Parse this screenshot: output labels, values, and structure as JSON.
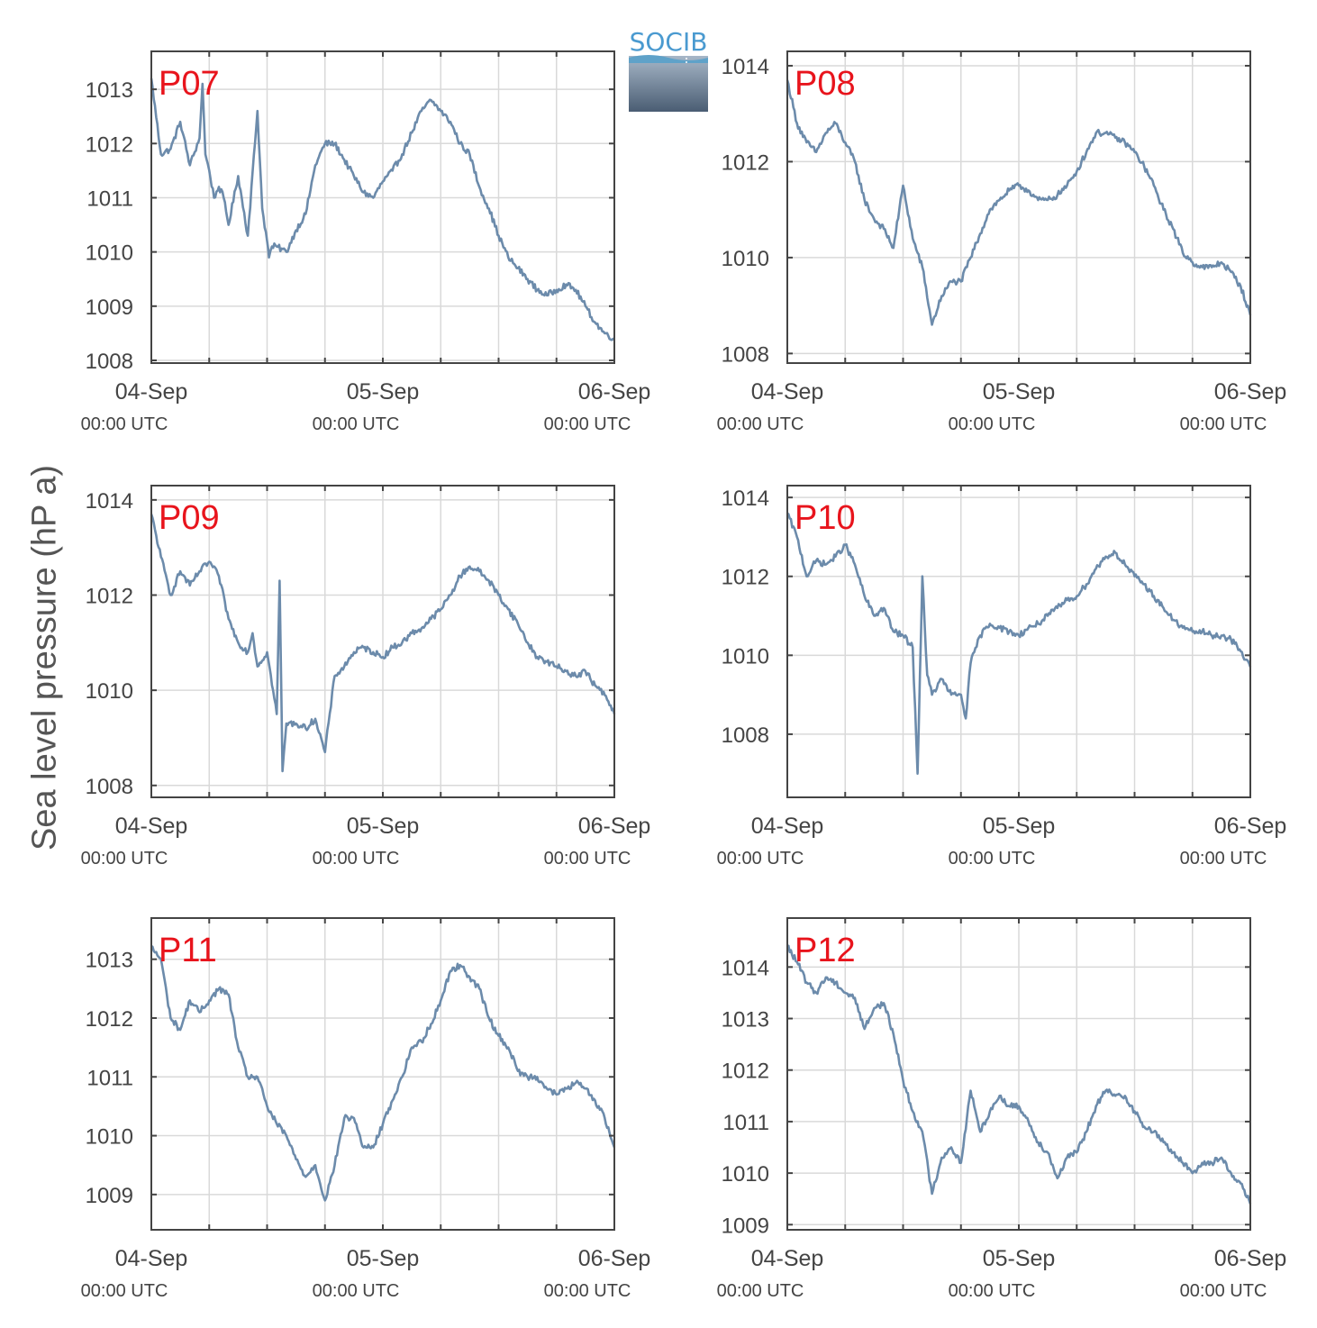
{
  "y_axis_label": "Sea level pressure (hP a)",
  "logo": {
    "text": "SOCIB",
    "color": "#4a9ad0"
  },
  "colors": {
    "series": "#6c8bab",
    "station_label": "#e8141c",
    "grid": "#d9d9d9",
    "axes": "#444444"
  },
  "chart_data": [
    {
      "type": "line",
      "panel_label": "P07",
      "x_ticks": [
        {
          "line1": "04-Sep",
          "line2": "00:00 UTC"
        },
        {
          "line1": "05-Sep",
          "line2": "00:00 UTC"
        },
        {
          "line1": "06-Sep",
          "line2": "00:00 UTC"
        }
      ],
      "x_range_hours": [
        0,
        48
      ],
      "ylim": [
        1007.95,
        1013.7
      ],
      "y_ticks": [
        1008,
        1009,
        1010,
        1011,
        1012,
        1013
      ],
      "grid": true,
      "x_hours": [
        0,
        1,
        2,
        3,
        4,
        5,
        5.3,
        5.6,
        6,
        6.5,
        7,
        7.5,
        8,
        9,
        10,
        11,
        11.5,
        12,
        12.2,
        12.5,
        13,
        14,
        15,
        16,
        17,
        18,
        19,
        20,
        21,
        22,
        23,
        24,
        25,
        26,
        27,
        28,
        29,
        30,
        31,
        32,
        33,
        34,
        35,
        36,
        37,
        38,
        39,
        40,
        41,
        42,
        43,
        44,
        45,
        46,
        47,
        48
      ],
      "values": [
        1013.2,
        1011.8,
        1011.9,
        1012.4,
        1011.6,
        1012.1,
        1013.1,
        1011.8,
        1011.5,
        1011.0,
        1011.2,
        1011.0,
        1010.5,
        1011.4,
        1010.3,
        1012.6,
        1010.8,
        1010.2,
        1009.9,
        1010.1,
        1010.1,
        1010.0,
        1010.4,
        1010.7,
        1011.6,
        1012.0,
        1012.0,
        1011.7,
        1011.4,
        1011.1,
        1011.0,
        1011.3,
        1011.5,
        1011.8,
        1012.2,
        1012.6,
        1012.8,
        1012.6,
        1012.4,
        1012.0,
        1011.8,
        1011.2,
        1010.8,
        1010.3,
        1009.9,
        1009.7,
        1009.5,
        1009.3,
        1009.2,
        1009.3,
        1009.4,
        1009.3,
        1009.0,
        1008.7,
        1008.5,
        1008.4
      ]
    },
    {
      "type": "line",
      "panel_label": "P08",
      "x_ticks": [
        {
          "line1": "04-Sep",
          "line2": "00:00 UTC"
        },
        {
          "line1": "05-Sep",
          "line2": "00:00 UTC"
        },
        {
          "line1": "06-Sep",
          "line2": "00:00 UTC"
        }
      ],
      "x_range_hours": [
        0,
        48
      ],
      "ylim": [
        1007.8,
        1014.3
      ],
      "y_ticks": [
        1008,
        1010,
        1012,
        1014
      ],
      "grid": true,
      "x_hours": [
        0,
        1,
        2,
        3,
        4,
        5,
        6,
        7,
        8,
        9,
        10,
        11,
        12,
        13,
        14,
        15,
        16,
        17,
        18,
        19,
        20,
        21,
        22,
        23,
        24,
        25,
        26,
        27,
        28,
        29,
        30,
        31,
        32,
        33,
        34,
        35,
        36,
        37,
        38,
        39,
        40,
        41,
        42,
        43,
        44,
        45,
        46,
        47,
        48
      ],
      "values": [
        1013.7,
        1012.8,
        1012.4,
        1012.2,
        1012.6,
        1012.8,
        1012.4,
        1012.0,
        1011.2,
        1010.8,
        1010.6,
        1010.2,
        1011.5,
        1010.4,
        1009.8,
        1008.6,
        1009.2,
        1009.5,
        1009.5,
        1010.0,
        1010.5,
        1011.0,
        1011.2,
        1011.4,
        1011.5,
        1011.4,
        1011.2,
        1011.2,
        1011.3,
        1011.5,
        1011.8,
        1012.2,
        1012.6,
        1012.6,
        1012.5,
        1012.4,
        1012.2,
        1011.9,
        1011.5,
        1011.0,
        1010.6,
        1010.1,
        1009.9,
        1009.8,
        1009.8,
        1009.9,
        1009.7,
        1009.4,
        1008.8
      ]
    },
    {
      "type": "line",
      "panel_label": "P09",
      "x_ticks": [
        {
          "line1": "04-Sep",
          "line2": "00:00 UTC"
        },
        {
          "line1": "05-Sep",
          "line2": "00:00 UTC"
        },
        {
          "line1": "06-Sep",
          "line2": "00:00 UTC"
        }
      ],
      "x_range_hours": [
        0,
        48
      ],
      "ylim": [
        1007.75,
        1014.3
      ],
      "y_ticks": [
        1008,
        1010,
        1012,
        1014
      ],
      "grid": true,
      "x_hours": [
        0,
        1,
        2,
        3,
        4,
        5,
        6,
        7,
        8,
        9,
        10,
        10.5,
        11,
        12,
        13,
        13.3,
        13.6,
        14,
        15,
        16,
        17,
        18,
        19,
        20,
        21,
        22,
        23,
        24,
        25,
        26,
        27,
        28,
        29,
        30,
        31,
        32,
        33,
        34,
        35,
        36,
        37,
        38,
        39,
        40,
        41,
        42,
        43,
        44,
        45,
        46,
        47,
        48
      ],
      "values": [
        1013.7,
        1012.8,
        1012.0,
        1012.5,
        1012.2,
        1012.5,
        1012.7,
        1012.4,
        1011.5,
        1011.0,
        1010.8,
        1011.2,
        1010.5,
        1010.8,
        1009.5,
        1012.3,
        1008.3,
        1009.3,
        1009.3,
        1009.2,
        1009.4,
        1008.7,
        1010.3,
        1010.5,
        1010.8,
        1010.9,
        1010.8,
        1010.7,
        1010.9,
        1011.0,
        1011.2,
        1011.3,
        1011.5,
        1011.7,
        1012.0,
        1012.4,
        1012.6,
        1012.5,
        1012.3,
        1012.0,
        1011.7,
        1011.4,
        1011.0,
        1010.7,
        1010.6,
        1010.5,
        1010.4,
        1010.3,
        1010.4,
        1010.1,
        1009.9,
        1009.5
      ]
    },
    {
      "type": "line",
      "panel_label": "P10",
      "x_ticks": [
        {
          "line1": "04-Sep",
          "line2": "00:00 UTC"
        },
        {
          "line1": "05-Sep",
          "line2": "00:00 UTC"
        },
        {
          "line1": "06-Sep",
          "line2": "00:00 UTC"
        }
      ],
      "x_range_hours": [
        0,
        48
      ],
      "ylim": [
        1006.4,
        1014.3
      ],
      "y_ticks": [
        1008,
        1010,
        1012,
        1014
      ],
      "grid": true,
      "x_hours": [
        0,
        1,
        2,
        3,
        4,
        5,
        6,
        7,
        8,
        9,
        10,
        11,
        12,
        13,
        13.5,
        14,
        14.5,
        15,
        16,
        17,
        18,
        18.5,
        19,
        20,
        21,
        22,
        23,
        24,
        25,
        26,
        27,
        28,
        29,
        30,
        31,
        32,
        33,
        34,
        35,
        36,
        37,
        38,
        39,
        40,
        41,
        42,
        43,
        44,
        45,
        46,
        47,
        48
      ],
      "values": [
        1013.6,
        1013.0,
        1012.0,
        1012.4,
        1012.3,
        1012.5,
        1012.8,
        1012.3,
        1011.5,
        1011.0,
        1011.2,
        1010.6,
        1010.5,
        1010.2,
        1007.0,
        1012.0,
        1009.5,
        1009.0,
        1009.4,
        1009.0,
        1009.0,
        1008.4,
        1009.8,
        1010.5,
        1010.8,
        1010.7,
        1010.6,
        1010.5,
        1010.7,
        1010.8,
        1011.0,
        1011.2,
        1011.4,
        1011.5,
        1011.8,
        1012.2,
        1012.5,
        1012.6,
        1012.3,
        1012.0,
        1011.8,
        1011.5,
        1011.2,
        1010.9,
        1010.7,
        1010.6,
        1010.6,
        1010.5,
        1010.5,
        1010.4,
        1010.1,
        1009.7
      ]
    },
    {
      "type": "line",
      "panel_label": "P11",
      "x_ticks": [
        {
          "line1": "04-Sep",
          "line2": "00:00 UTC"
        },
        {
          "line1": "05-Sep",
          "line2": "00:00 UTC"
        },
        {
          "line1": "06-Sep",
          "line2": "00:00 UTC"
        }
      ],
      "x_range_hours": [
        0,
        48
      ],
      "ylim": [
        1008.4,
        1013.7
      ],
      "y_ticks": [
        1009,
        1010,
        1011,
        1012,
        1013
      ],
      "grid": true,
      "x_hours": [
        0,
        1,
        2,
        3,
        4,
        5,
        6,
        7,
        8,
        9,
        10,
        11,
        12,
        13,
        14,
        15,
        16,
        17,
        18,
        19,
        20,
        21,
        22,
        23,
        24,
        25,
        26,
        27,
        28,
        29,
        30,
        31,
        32,
        33,
        34,
        35,
        36,
        37,
        38,
        39,
        40,
        41,
        42,
        43,
        44,
        45,
        46,
        47,
        48
      ],
      "values": [
        1013.2,
        1013.0,
        1012.0,
        1011.8,
        1012.3,
        1012.1,
        1012.3,
        1012.5,
        1012.4,
        1011.5,
        1011.0,
        1011.0,
        1010.5,
        1010.2,
        1010.0,
        1009.6,
        1009.3,
        1009.5,
        1008.9,
        1009.5,
        1010.3,
        1010.3,
        1009.8,
        1009.8,
        1010.2,
        1010.6,
        1011.0,
        1011.5,
        1011.6,
        1011.9,
        1012.3,
        1012.8,
        1012.9,
        1012.7,
        1012.5,
        1012.0,
        1011.7,
        1011.5,
        1011.1,
        1011.0,
        1011.0,
        1010.8,
        1010.7,
        1010.8,
        1010.9,
        1010.8,
        1010.6,
        1010.3,
        1009.8
      ]
    },
    {
      "type": "line",
      "panel_label": "P12",
      "x_ticks": [
        {
          "line1": "04-Sep",
          "line2": "00:00 UTC"
        },
        {
          "line1": "05-Sep",
          "line2": "00:00 UTC"
        },
        {
          "line1": "06-Sep",
          "line2": "00:00 UTC"
        }
      ],
      "x_range_hours": [
        0,
        48
      ],
      "ylim": [
        1008.9,
        1014.95
      ],
      "y_ticks": [
        1009,
        1010,
        1011,
        1012,
        1013,
        1014
      ],
      "grid": true,
      "x_hours": [
        0,
        1,
        2,
        3,
        4,
        5,
        6,
        7,
        8,
        9,
        10,
        11,
        12,
        13,
        14,
        15,
        16,
        17,
        18,
        19,
        20,
        21,
        22,
        23,
        24,
        25,
        26,
        27,
        28,
        29,
        30,
        31,
        32,
        33,
        34,
        35,
        36,
        37,
        38,
        39,
        40,
        41,
        42,
        43,
        44,
        45,
        46,
        47,
        48
      ],
      "values": [
        1014.4,
        1014.1,
        1013.7,
        1013.5,
        1013.8,
        1013.7,
        1013.5,
        1013.4,
        1012.8,
        1013.2,
        1013.3,
        1012.7,
        1011.8,
        1011.2,
        1010.8,
        1009.6,
        1010.3,
        1010.5,
        1010.2,
        1011.6,
        1010.8,
        1011.2,
        1011.5,
        1011.3,
        1011.3,
        1011.0,
        1010.6,
        1010.4,
        1009.9,
        1010.3,
        1010.4,
        1010.8,
        1011.3,
        1011.6,
        1011.5,
        1011.5,
        1011.2,
        1010.9,
        1010.8,
        1010.6,
        1010.4,
        1010.2,
        1010.0,
        1010.2,
        1010.2,
        1010.3,
        1010.0,
        1009.8,
        1009.4
      ]
    }
  ]
}
